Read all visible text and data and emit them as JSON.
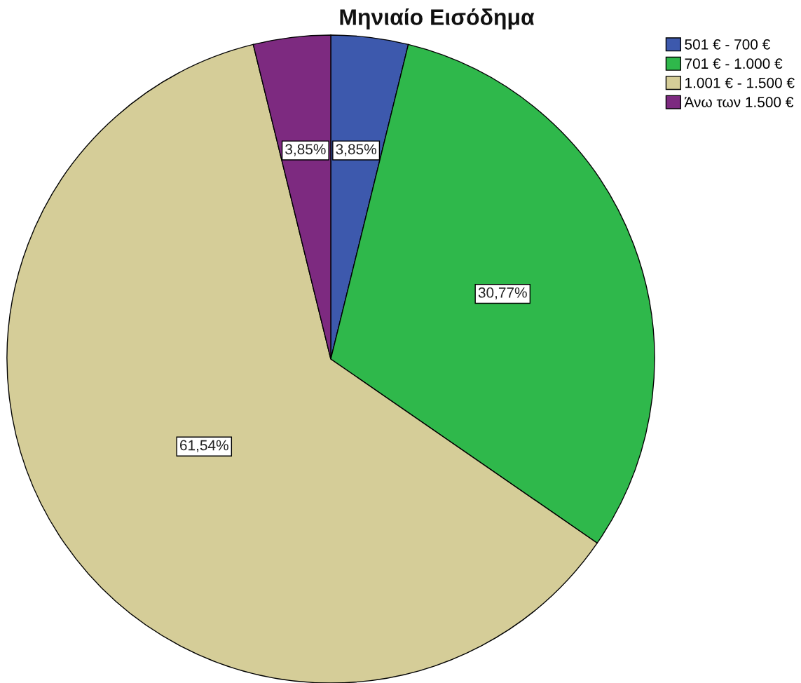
{
  "chart_data": {
    "type": "pie",
    "title": "Μηνιαίο Εισόδημα",
    "categories": [
      "501 € - 700 €",
      "701 € - 1.000 €",
      "1.001 € - 1.500 €",
      "Άνω των 1.500 €"
    ],
    "values": [
      3.85,
      30.77,
      61.54,
      3.85
    ],
    "colors": [
      "#3d59ad",
      "#2fb84b",
      "#d5cd98",
      "#7d2a80"
    ],
    "value_labels": [
      "3,85%",
      "30,77%",
      "61,54%",
      "3,85%"
    ],
    "legend": "top right"
  }
}
